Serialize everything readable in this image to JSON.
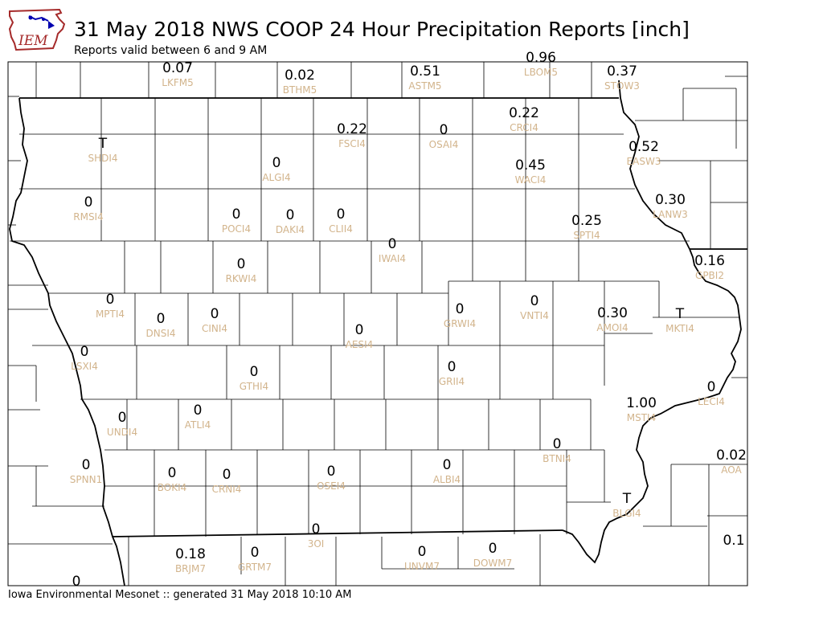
{
  "header": {
    "title": "31 May 2018 NWS COOP 24 Hour Precipitation Reports [inch]",
    "subtitle": "Reports valid between 6 and 9 AM",
    "logo_text": "IEM"
  },
  "footer": {
    "text": "Iowa Environmental Mesonet :: generated 31 May 2018 10:10 AM"
  },
  "colors": {
    "value_text": "#000000",
    "station_text": "#d2b48c",
    "logo_blue": "#0000b0",
    "logo_red": "#a52a2a"
  },
  "stations": [
    {
      "id": "LKFM5",
      "value": "0.07"
    },
    {
      "id": "BTHM5",
      "value": "0.02"
    },
    {
      "id": "ASTM5",
      "value": "0.51"
    },
    {
      "id": "LBOM5",
      "value": "0.96"
    },
    {
      "id": "STOW3",
      "value": "0.37"
    },
    {
      "id": "CRCI4",
      "value": "0.22"
    },
    {
      "id": "FSCI4",
      "value": "0.22"
    },
    {
      "id": "OSAI4",
      "value": "0"
    },
    {
      "id": "SHDI4",
      "value": "T"
    },
    {
      "id": "ALGI4",
      "value": "0"
    },
    {
      "id": "WACI4",
      "value": "0.45"
    },
    {
      "id": "EASW3",
      "value": "0.52"
    },
    {
      "id": "RMSI4",
      "value": "0"
    },
    {
      "id": "LANW3",
      "value": "0.30"
    },
    {
      "id": "POCI4",
      "value": "0"
    },
    {
      "id": "DAKI4",
      "value": "0"
    },
    {
      "id": "CLII4",
      "value": "0"
    },
    {
      "id": "SPTI4",
      "value": "0.25"
    },
    {
      "id": "IWAI4",
      "value": "0"
    },
    {
      "id": "RKWI4",
      "value": "0"
    },
    {
      "id": "GPBI2",
      "value": "0.16"
    },
    {
      "id": "MPTI4",
      "value": "0"
    },
    {
      "id": "GRWI4",
      "value": "0"
    },
    {
      "id": "VNTI4",
      "value": "0"
    },
    {
      "id": "AMOI4",
      "value": "0.30"
    },
    {
      "id": "MKTI4",
      "value": "T"
    },
    {
      "id": "DNSI4",
      "value": "0"
    },
    {
      "id": "CINI4",
      "value": "0"
    },
    {
      "id": "AESI4",
      "value": "0"
    },
    {
      "id": "LSXI4",
      "value": "0"
    },
    {
      "id": "GRII4",
      "value": "0"
    },
    {
      "id": "GTHI4",
      "value": "0"
    },
    {
      "id": "LECI4",
      "value": "0"
    },
    {
      "id": "MSTI4",
      "value": "1.00"
    },
    {
      "id": "UNDI4",
      "value": "0"
    },
    {
      "id": "ATLI4",
      "value": "0"
    },
    {
      "id": "BTNI4",
      "value": "0"
    },
    {
      "id": "AOA",
      "value": "0.02"
    },
    {
      "id": "SPNN1",
      "value": "0"
    },
    {
      "id": "BOKI4",
      "value": "0"
    },
    {
      "id": "CRNI4",
      "value": "0"
    },
    {
      "id": "OSEI4",
      "value": "0"
    },
    {
      "id": "ALBI4",
      "value": "0"
    },
    {
      "id": "BLGI4",
      "value": "T"
    },
    {
      "id": "3OI",
      "value": "0"
    },
    {
      "id": "BRJM7",
      "value": "0.18"
    },
    {
      "id": "GRTM7",
      "value": "0"
    },
    {
      "id": "UNVM7",
      "value": "0"
    },
    {
      "id": "DOWM7",
      "value": "0"
    },
    {
      "id": "",
      "value": "0.1"
    },
    {
      "id": "",
      "value": "0"
    }
  ]
}
